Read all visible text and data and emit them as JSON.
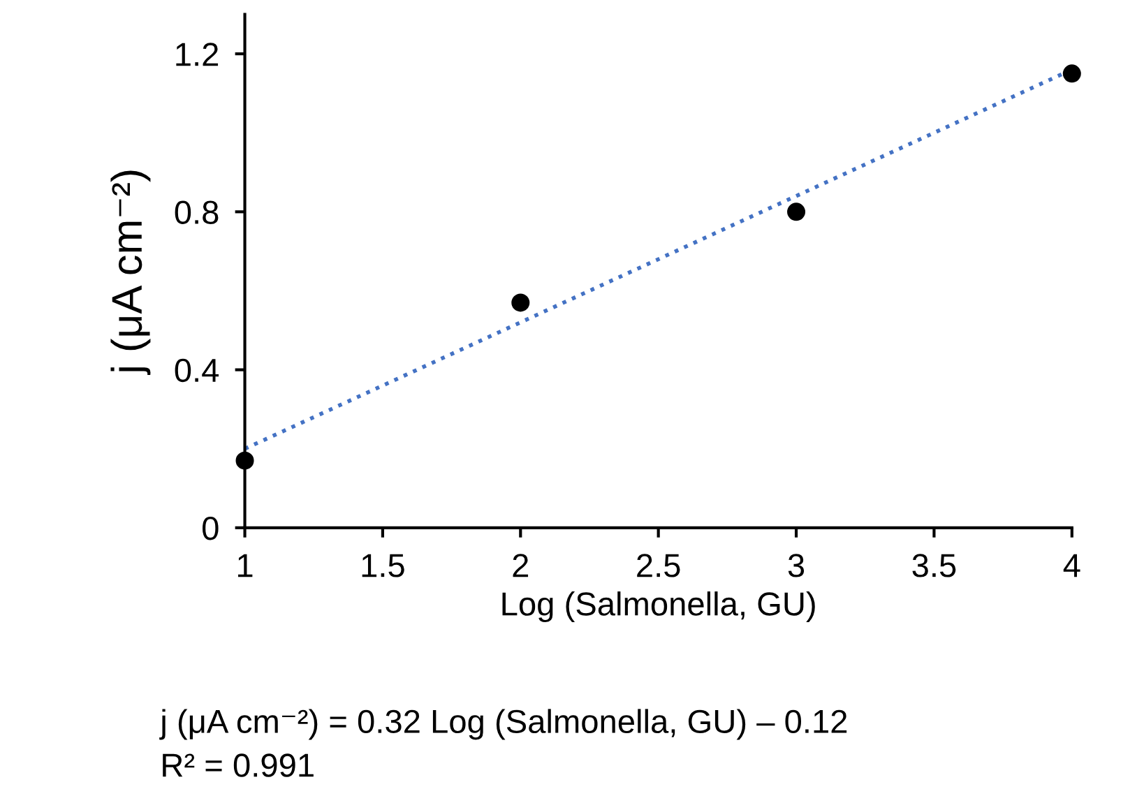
{
  "chart_data": {
    "type": "scatter",
    "xlabel": "Log (Salmonella, GU)",
    "ylabel": "j (μA cm⁻²)",
    "x": [
      1,
      2,
      3,
      4
    ],
    "series": [
      {
        "color": "#000000",
        "values": [
          0.17,
          0.57,
          0.8,
          1.15
        ],
        "marker": "circle"
      },
      {
        "type": "line",
        "color": "#4472c4",
        "x": [
          1,
          4
        ],
        "values": [
          0.2,
          1.16
        ],
        "line_style": "dotted",
        "marker": "none"
      }
    ],
    "xlim": [
      1,
      4
    ],
    "xticks": [
      1,
      1.5,
      2,
      2.5,
      3,
      3.5,
      4
    ],
    "ylim": [
      0,
      1.3
    ],
    "yticks": [
      0,
      0.4,
      0.8,
      1.2
    ],
    "grid": false,
    "legend": false,
    "annotations": [
      "j (μA cm⁻²) = 0.32 Log (Salmonella, GU) – 0.12",
      "R² = 0.991"
    ]
  }
}
